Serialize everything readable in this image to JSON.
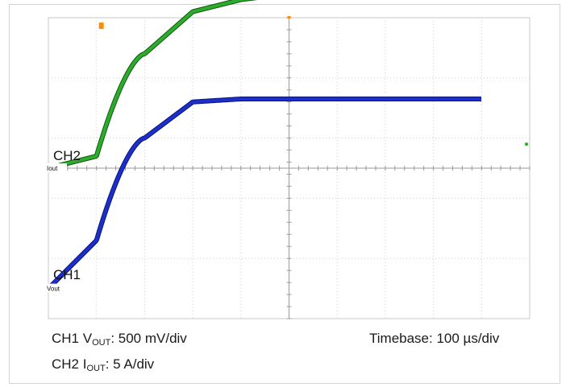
{
  "chart_data": {
    "type": "line",
    "x_unit": "µs",
    "xlim": [
      -100,
      900
    ],
    "grid": true,
    "series": [
      {
        "name": "CH2",
        "marker_label": "Iout",
        "color": "#2eaa2e",
        "edge_color": "#0d5a0d",
        "divisions_per_unit": 0.2,
        "baseline_division": 0,
        "x": [
          -100,
          0,
          100,
          200,
          300,
          400,
          500,
          600,
          700,
          800
        ],
        "y_div": [
          0,
          0.2,
          1.9,
          2.6,
          2.8,
          2.9,
          2.95,
          2.97,
          2.98,
          2.98
        ]
      },
      {
        "name": "CH1",
        "marker_label": "Vout",
        "color": "#1d2fc9",
        "edge_color": "#0a137a",
        "divisions_per_unit": 2,
        "baseline_division": -2,
        "x": [
          -100,
          0,
          100,
          200,
          300,
          400,
          500,
          600,
          700,
          800
        ],
        "y_div": [
          -2,
          -1.2,
          0.5,
          1.1,
          1.15,
          1.15,
          1.15,
          1.15,
          1.15,
          1.15
        ]
      }
    ],
    "trigger_marker": "T",
    "trigger_color": "#ff8c00"
  },
  "labels": {
    "ch2": "CH2",
    "ch2_tag": "Iout",
    "ch1": "CH1",
    "ch1_tag": "Vout"
  },
  "footer": {
    "ch1_prefix": "CH1 V",
    "ch1_sub": "OUT",
    "ch1_scale": ": 500 mV/div",
    "ch2_prefix": "CH2 I",
    "ch2_sub": "OUT",
    "ch2_scale": ": 5 A/div",
    "timebase": "Timebase: 100 µs/div"
  }
}
